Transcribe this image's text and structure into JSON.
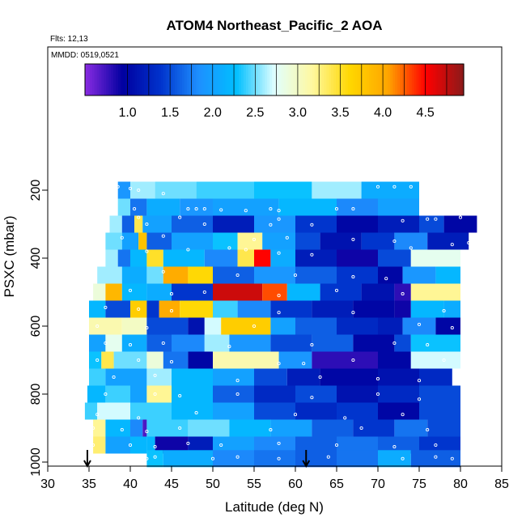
{
  "chart_data": {
    "type": "heatmap",
    "title": "ATOM4 Northeast_Pacific_2 AOA",
    "flights_label": "Flts: 12,13",
    "date_label": "MMDD: 0519,0521",
    "xlabel": "Latitude (deg N)",
    "ylabel": "PSXC (mbar)",
    "xlim": [
      30,
      85
    ],
    "ylim": [
      1000,
      0
    ],
    "x_ticks": [
      "30",
      "35",
      "40",
      "45",
      "50",
      "55",
      "60",
      "65",
      "70",
      "75",
      "80",
      "85"
    ],
    "y_ticks": [
      "200",
      "400",
      "600",
      "800",
      "1000"
    ],
    "colorbar": {
      "range": [
        0.5,
        4.95
      ],
      "tick_labels": [
        "1.0",
        "1.5",
        "2.0",
        "2.5",
        "3.0",
        "3.5",
        "4.0",
        "4.5"
      ],
      "tick_values": [
        1.0,
        1.5,
        2.0,
        2.5,
        3.0,
        3.5,
        4.0,
        4.5
      ],
      "colors": [
        "#8a2be2",
        "#0000a0",
        "#0033cc",
        "#1e90ff",
        "#00bfff",
        "#e0ffff",
        "#fff8a0",
        "#ffd700",
        "#ffa500",
        "#ff0000",
        "#8b1a1a"
      ]
    },
    "arrows_lat": [
      34.8,
      61.3
    ],
    "bands": [
      {
        "p": 200,
        "cells": [
          [
            38.5,
            1.9
          ],
          [
            40,
            2.6
          ],
          [
            43,
            2.5
          ],
          [
            48,
            2.4
          ],
          [
            55,
            2.3
          ],
          [
            62,
            2.6
          ],
          [
            68,
            2.1
          ],
          [
            75,
            null
          ]
        ]
      },
      {
        "p": 250,
        "cells": [
          [
            38.5,
            2.5
          ],
          [
            40,
            1.7
          ],
          [
            42,
            2.1
          ],
          [
            46,
            1.9
          ],
          [
            50,
            2.0
          ],
          [
            58,
            2.2
          ],
          [
            65,
            1.8
          ],
          [
            70,
            2.0
          ],
          [
            75,
            null
          ]
        ]
      },
      {
        "p": 300,
        "cells": [
          [
            37.5,
            2.6
          ],
          [
            39,
            1.6
          ],
          [
            40.5,
            3.4
          ],
          [
            41.5,
            2.0
          ],
          [
            45,
            1.6
          ],
          [
            50,
            1.2
          ],
          [
            55,
            1.9
          ],
          [
            60,
            1.4
          ],
          [
            65,
            1.0
          ],
          [
            70,
            1.2
          ],
          [
            75,
            1.5
          ],
          [
            78,
            1.0
          ],
          [
            82,
            null
          ]
        ]
      },
      {
        "p": 350,
        "cells": [
          [
            37,
            2.5
          ],
          [
            39,
            2.0
          ],
          [
            41,
            3.8
          ],
          [
            42,
            1.6
          ],
          [
            45,
            2.0
          ],
          [
            50,
            2.3
          ],
          [
            53,
            3.2
          ],
          [
            56,
            2.0
          ],
          [
            60,
            1.5
          ],
          [
            63,
            1.1
          ],
          [
            68,
            1.4
          ],
          [
            72,
            1.8
          ],
          [
            76,
            1.2
          ],
          [
            81,
            null
          ]
        ]
      },
      {
        "p": 400,
        "cells": [
          [
            37,
            2.6
          ],
          [
            38.5,
            1.7
          ],
          [
            40,
            2.2
          ],
          [
            42,
            3.5
          ],
          [
            44,
            2.2
          ],
          [
            49,
            1.8
          ],
          [
            53,
            3.4
          ],
          [
            55,
            4.5
          ],
          [
            57,
            2.1
          ],
          [
            60,
            1.2
          ],
          [
            65,
            0.9
          ],
          [
            70,
            1.5
          ],
          [
            74,
            2.8
          ],
          [
            80,
            null
          ]
        ]
      },
      {
        "p": 450,
        "cells": [
          [
            36,
            2.6
          ],
          [
            39,
            2.1
          ],
          [
            42,
            2.5
          ],
          [
            44,
            4.0
          ],
          [
            47,
            3.6
          ],
          [
            50,
            1.6
          ],
          [
            55,
            1.9
          ],
          [
            60,
            1.6
          ],
          [
            65,
            1.4
          ],
          [
            70,
            1.0
          ],
          [
            73,
            1.9
          ],
          [
            77,
            2.2
          ],
          [
            80,
            null
          ]
        ]
      },
      {
        "p": 500,
        "cells": [
          [
            35.5,
            2.9
          ],
          [
            37,
            3.9
          ],
          [
            39,
            2.2
          ],
          [
            42,
            2.1
          ],
          [
            45,
            1.4
          ],
          [
            50,
            4.7
          ],
          [
            56,
            4.3
          ],
          [
            59,
            2.2
          ],
          [
            63,
            1.4
          ],
          [
            68,
            1.1
          ],
          [
            72,
            0.8
          ],
          [
            74,
            3.2
          ],
          [
            80,
            null
          ]
        ]
      },
      {
        "p": 550,
        "cells": [
          [
            35,
            2.2
          ],
          [
            37,
            1.5
          ],
          [
            40,
            3.7
          ],
          [
            42,
            1.4
          ],
          [
            43.5,
            4.0
          ],
          [
            46,
            3.6
          ],
          [
            50,
            2.4
          ],
          [
            53,
            1.8
          ],
          [
            57,
            1.4
          ],
          [
            62,
            1.2
          ],
          [
            67,
            1.0
          ],
          [
            72,
            0.9
          ],
          [
            74,
            2.2
          ],
          [
            78,
            2.1
          ],
          [
            80,
            null
          ]
        ]
      },
      {
        "p": 600,
        "cells": [
          [
            35,
            3.1
          ],
          [
            39,
            3.0
          ],
          [
            42,
            1.5
          ],
          [
            47,
            1.1
          ],
          [
            49,
            2.7
          ],
          [
            51,
            3.7
          ],
          [
            57,
            2.0
          ],
          [
            60,
            1.6
          ],
          [
            65,
            1.3
          ],
          [
            70,
            1.2
          ],
          [
            73,
            1.8
          ],
          [
            77,
            1.0
          ],
          [
            80,
            null
          ]
        ]
      },
      {
        "p": 650,
        "cells": [
          [
            35,
            2.0
          ],
          [
            37,
            2.8
          ],
          [
            39,
            2.1
          ],
          [
            42,
            1.6
          ],
          [
            45,
            1.8
          ],
          [
            49,
            2.6
          ],
          [
            52,
            1.9
          ],
          [
            57,
            1.5
          ],
          [
            62,
            1.6
          ],
          [
            67,
            1.0
          ],
          [
            72,
            1.5
          ],
          [
            74,
            2.3
          ],
          [
            80,
            null
          ]
        ]
      },
      {
        "p": 700,
        "cells": [
          [
            35,
            2.3
          ],
          [
            36.5,
            3.4
          ],
          [
            38,
            2.5
          ],
          [
            42,
            2.9
          ],
          [
            44,
            1.7
          ],
          [
            47,
            1.0
          ],
          [
            50,
            3.1
          ],
          [
            58,
            1.9
          ],
          [
            62,
            0.8
          ],
          [
            70,
            1.0
          ],
          [
            74,
            2.7
          ],
          [
            80,
            null
          ]
        ]
      },
      {
        "p": 750,
        "cells": [
          [
            35,
            2.4
          ],
          [
            37,
            2.0
          ],
          [
            42,
            2.6
          ],
          [
            45,
            2.2
          ],
          [
            50,
            2.0
          ],
          [
            55,
            1.5
          ],
          [
            59,
            1.2
          ],
          [
            63,
            1.0
          ],
          [
            70,
            1.1
          ],
          [
            75,
            1.3
          ],
          [
            79,
            null
          ]
        ]
      },
      {
        "p": 800,
        "cells": [
          [
            34.8,
            2.2
          ],
          [
            37,
            2.4
          ],
          [
            40,
            2.0
          ],
          [
            42,
            3.2
          ],
          [
            45,
            2.2
          ],
          [
            50,
            1.6
          ],
          [
            55,
            1.3
          ],
          [
            60,
            1.5
          ],
          [
            65,
            1.1
          ],
          [
            70,
            1.3
          ],
          [
            75,
            1.5
          ],
          [
            80,
            null
          ]
        ]
      },
      {
        "p": 850,
        "cells": [
          [
            34.5,
            2.4
          ],
          [
            36,
            2.7
          ],
          [
            40,
            2.4
          ],
          [
            45,
            2.2
          ],
          [
            50,
            2.0
          ],
          [
            55,
            1.5
          ],
          [
            60,
            1.3
          ],
          [
            65,
            1.4
          ],
          [
            70,
            1.0
          ],
          [
            75,
            1.5
          ],
          [
            80,
            null
          ]
        ]
      },
      {
        "p": 900,
        "cells": [
          [
            35.5,
            3.2
          ],
          [
            37,
            2.2
          ],
          [
            40,
            1.8
          ],
          [
            41.5,
            0.7
          ],
          [
            42,
            2.4
          ],
          [
            47,
            2.5
          ],
          [
            52,
            2.2
          ],
          [
            57,
            2.0
          ],
          [
            62,
            1.6
          ],
          [
            67,
            1.4
          ],
          [
            72,
            1.7
          ],
          [
            76,
            1.5
          ],
          [
            80,
            null
          ]
        ]
      },
      {
        "p": 950,
        "cells": [
          [
            35.5,
            3.3
          ],
          [
            37,
            2.0
          ],
          [
            40,
            2.2
          ],
          [
            42,
            2.2
          ],
          [
            43,
            0.9
          ],
          [
            47,
            1.2
          ],
          [
            50,
            2.0
          ],
          [
            55,
            1.8
          ],
          [
            60,
            1.6
          ],
          [
            65,
            1.7
          ],
          [
            70,
            1.6
          ],
          [
            75,
            1.4
          ],
          [
            80,
            null
          ]
        ]
      },
      {
        "p": 990,
        "cells": [
          [
            42,
            2.3
          ],
          [
            44,
            2.1
          ],
          [
            50,
            1.8
          ],
          [
            55,
            1.7
          ],
          [
            60,
            1.6
          ],
          [
            65,
            1.7
          ],
          [
            70,
            2.1
          ],
          [
            74,
            1.6
          ],
          [
            80,
            null
          ]
        ]
      }
    ],
    "sample_points": [
      [
        38.5,
        190
      ],
      [
        40,
        195
      ],
      [
        41,
        200
      ],
      [
        44,
        210
      ],
      [
        70,
        190
      ],
      [
        72,
        190
      ],
      [
        74,
        190
      ],
      [
        76,
        190
      ],
      [
        78,
        190
      ],
      [
        80,
        190
      ],
      [
        40.5,
        255
      ],
      [
        47,
        255
      ],
      [
        48,
        255
      ],
      [
        49,
        255
      ],
      [
        51,
        258
      ],
      [
        54,
        260
      ],
      [
        57,
        255
      ],
      [
        58,
        260
      ],
      [
        65,
        255
      ],
      [
        67,
        255
      ],
      [
        41,
        280
      ],
      [
        46,
        280
      ],
      [
        58,
        285
      ],
      [
        73,
        290
      ],
      [
        76,
        285
      ],
      [
        77,
        285
      ],
      [
        80,
        280
      ],
      [
        42,
        300
      ],
      [
        49,
        300
      ],
      [
        57,
        302
      ],
      [
        62,
        302
      ],
      [
        39,
        340
      ],
      [
        44,
        335
      ],
      [
        55,
        345
      ],
      [
        59,
        340
      ],
      [
        67,
        345
      ],
      [
        72,
        350
      ],
      [
        79,
        360
      ],
      [
        81,
        355
      ],
      [
        42,
        380
      ],
      [
        47,
        375
      ],
      [
        52,
        370
      ],
      [
        54,
        375
      ],
      [
        58,
        385
      ],
      [
        62,
        390
      ],
      [
        74,
        370
      ],
      [
        44,
        440
      ],
      [
        53,
        450
      ],
      [
        60,
        450
      ],
      [
        67,
        455
      ],
      [
        71,
        460
      ],
      [
        40,
        495
      ],
      [
        45,
        505
      ],
      [
        49,
        500
      ],
      [
        58,
        510
      ],
      [
        65,
        495
      ],
      [
        73,
        505
      ],
      [
        37,
        545
      ],
      [
        41,
        550
      ],
      [
        45,
        555
      ],
      [
        58,
        560
      ],
      [
        67,
        560
      ],
      [
        78,
        555
      ],
      [
        36,
        600
      ],
      [
        42,
        605
      ],
      [
        55,
        600
      ],
      [
        75,
        595
      ],
      [
        79,
        605
      ],
      [
        37,
        650
      ],
      [
        40,
        655
      ],
      [
        44,
        650
      ],
      [
        52,
        660
      ],
      [
        62,
        655
      ],
      [
        72,
        650
      ],
      [
        76,
        655
      ],
      [
        36,
        700
      ],
      [
        41,
        700
      ],
      [
        45,
        705
      ],
      [
        58,
        710
      ],
      [
        61,
        710
      ],
      [
        67,
        700
      ],
      [
        78,
        700
      ],
      [
        38,
        750
      ],
      [
        43,
        745
      ],
      [
        53,
        760
      ],
      [
        63,
        750
      ],
      [
        70,
        755
      ],
      [
        75,
        760
      ],
      [
        37,
        800
      ],
      [
        43,
        800
      ],
      [
        46,
        805
      ],
      [
        53,
        800
      ],
      [
        62,
        810
      ],
      [
        70,
        800
      ],
      [
        75,
        815
      ],
      [
        36,
        860
      ],
      [
        41,
        870
      ],
      [
        48,
        855
      ],
      [
        60,
        860
      ],
      [
        66,
        870
      ],
      [
        73,
        860
      ],
      [
        35.5,
        900
      ],
      [
        39,
        905
      ],
      [
        42,
        910
      ],
      [
        46,
        900
      ],
      [
        57,
        905
      ],
      [
        68,
        900
      ],
      [
        76,
        905
      ],
      [
        35.5,
        950
      ],
      [
        40,
        950
      ],
      [
        43,
        955
      ],
      [
        47,
        945
      ],
      [
        51,
        950
      ],
      [
        58,
        945
      ],
      [
        65,
        950
      ],
      [
        72,
        955
      ],
      [
        77,
        950
      ],
      [
        42,
        990
      ],
      [
        43,
        985
      ],
      [
        50,
        990
      ],
      [
        53,
        985
      ],
      [
        58,
        990
      ],
      [
        64,
        985
      ],
      [
        73,
        990
      ],
      [
        77,
        985
      ],
      [
        79,
        990
      ]
    ]
  }
}
